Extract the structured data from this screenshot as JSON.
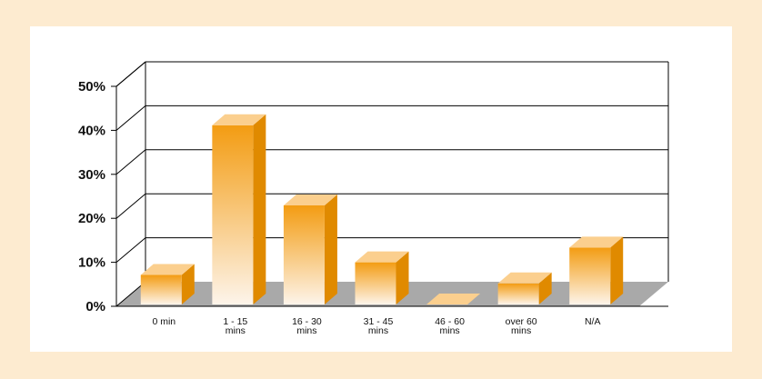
{
  "colors": {
    "page_background": "#fdebd0",
    "frame_background": "#ffffff",
    "floor": "#a9a9a9",
    "bar_front_top": "#f39c12",
    "bar_front_bottom": "#fdf4ea",
    "bar_side": "#e08a00",
    "bar_top": "#fbcf8e"
  },
  "chart_data": {
    "type": "bar",
    "style": "3d",
    "categories": [
      "0 min",
      "1 - 15\nmins",
      "16 - 30\nmins",
      "31 - 45\nmins",
      "46 - 60\nmins",
      "over 60\nmins",
      "N/A"
    ],
    "values": [
      7,
      42.5,
      23.5,
      10,
      0,
      5,
      13.5
    ],
    "y_ticks": [
      "0%",
      "10%",
      "20%",
      "30%",
      "40%",
      "50%"
    ],
    "ylim": [
      0,
      50
    ],
    "grid": true,
    "legend": "none"
  }
}
